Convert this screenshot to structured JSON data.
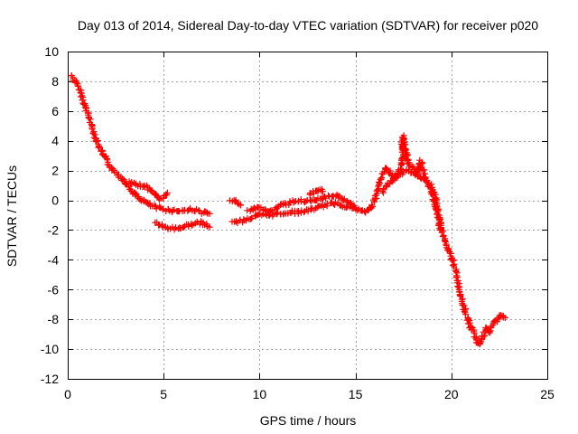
{
  "chart_data": {
    "type": "scatter",
    "title": "Day 013 of 2014, Sidereal Day-to-day VTEC variation (SDTVAR) for receiver p020",
    "xlabel": "GPS time / hours",
    "ylabel": "SDTVAR / TECUs",
    "xlim": [
      0,
      25
    ],
    "ylim": [
      -12,
      10
    ],
    "xticks": [
      0,
      5,
      10,
      15,
      20,
      25
    ],
    "yticks": [
      -12,
      -10,
      -8,
      -6,
      -4,
      -2,
      0,
      2,
      4,
      6,
      8,
      10
    ],
    "grid": true,
    "marker": "+",
    "legend": "none",
    "series": [
      {
        "name": "SDTVAR",
        "color": "#ff0000",
        "segments": [
          {
            "name": "main-track",
            "points": [
              [
                0.2,
                8.4
              ],
              [
                0.4,
                8.0
              ],
              [
                0.6,
                7.5
              ],
              [
                0.8,
                6.8
              ],
              [
                1.0,
                6.0
              ],
              [
                1.2,
                5.2
              ],
              [
                1.4,
                4.4
              ],
              [
                1.6,
                3.7
              ],
              [
                1.8,
                3.2
              ],
              [
                2.0,
                2.8
              ],
              [
                2.2,
                2.3
              ],
              [
                2.5,
                1.9
              ],
              [
                2.8,
                1.5
              ],
              [
                3.0,
                1.2
              ],
              [
                3.2,
                0.8
              ],
              [
                3.5,
                0.4
              ],
              [
                3.8,
                0.1
              ],
              [
                4.0,
                -0.1
              ],
              [
                4.3,
                -0.3
              ],
              [
                4.6,
                -0.5
              ],
              [
                5.0,
                -0.6
              ],
              [
                5.5,
                -0.7
              ],
              [
                6.0,
                -0.7
              ],
              [
                6.5,
                -0.6
              ],
              [
                7.0,
                -0.8
              ],
              [
                7.4,
                -0.9
              ]
            ]
          },
          {
            "name": "upper-branch",
            "points": [
              [
                3.2,
                1.2
              ],
              [
                3.6,
                1.0
              ],
              [
                4.0,
                1.0
              ],
              [
                4.3,
                0.7
              ],
              [
                4.6,
                0.4
              ],
              [
                4.8,
                0.1
              ],
              [
                5.0,
                0.2
              ],
              [
                5.2,
                0.5
              ]
            ]
          },
          {
            "name": "lower-branch",
            "points": [
              [
                4.6,
                -1.5
              ],
              [
                5.0,
                -1.8
              ],
              [
                5.5,
                -1.9
              ],
              [
                6.0,
                -1.8
              ],
              [
                6.5,
                -1.6
              ],
              [
                7.0,
                -1.5
              ],
              [
                7.4,
                -1.8
              ]
            ]
          },
          {
            "name": "mid-track",
            "points": [
              [
                8.5,
                0.0
              ],
              [
                8.8,
                -0.1
              ],
              [
                9.0,
                -0.3
              ]
            ]
          },
          {
            "name": "mid-track-2",
            "points": [
              [
                8.6,
                -1.5
              ],
              [
                9.0,
                -1.4
              ],
              [
                9.5,
                -1.2
              ],
              [
                10.0,
                -1.0
              ],
              [
                10.5,
                -1.0
              ],
              [
                11.0,
                -0.9
              ],
              [
                11.5,
                -0.8
              ],
              [
                12.0,
                -0.8
              ],
              [
                12.5,
                -0.7
              ],
              [
                13.0,
                -0.5
              ],
              [
                13.5,
                -0.3
              ],
              [
                14.0,
                -0.2
              ],
              [
                14.5,
                -0.4
              ],
              [
                15.0,
                -0.6
              ],
              [
                15.5,
                -0.8
              ],
              [
                15.8,
                -0.5
              ],
              [
                16.0,
                0.0
              ],
              [
                16.2,
                0.8
              ],
              [
                16.4,
                1.8
              ],
              [
                16.6,
                2.2
              ],
              [
                16.8,
                1.8
              ],
              [
                17.0,
                1.5
              ],
              [
                17.2,
                1.8
              ],
              [
                17.4,
                2.3
              ],
              [
                17.5,
                3.8
              ],
              [
                17.6,
                2.8
              ],
              [
                17.8,
                2.5
              ],
              [
                18.0,
                2.2
              ],
              [
                18.2,
                1.8
              ],
              [
                18.4,
                2.6
              ],
              [
                18.6,
                1.6
              ],
              [
                18.8,
                1.0
              ],
              [
                19.0,
                0.4
              ],
              [
                19.2,
                -0.5
              ],
              [
                19.4,
                -1.5
              ],
              [
                19.6,
                -2.5
              ],
              [
                19.8,
                -3.3
              ],
              [
                20.0,
                -3.8
              ],
              [
                20.2,
                -4.6
              ],
              [
                20.4,
                -5.8
              ],
              [
                20.6,
                -7.0
              ],
              [
                20.8,
                -7.8
              ],
              [
                21.0,
                -8.5
              ],
              [
                21.2,
                -9.0
              ],
              [
                21.4,
                -9.7
              ],
              [
                21.6,
                -9.4
              ],
              [
                21.8,
                -8.6
              ],
              [
                22.0,
                -8.9
              ],
              [
                22.2,
                -8.2
              ],
              [
                22.4,
                -8.0
              ],
              [
                22.6,
                -7.7
              ],
              [
                22.8,
                -7.9
              ]
            ]
          },
          {
            "name": "mid-upper",
            "points": [
              [
                9.4,
                -0.7
              ],
              [
                10.0,
                -0.5
              ],
              [
                10.5,
                -0.8
              ],
              [
                11.0,
                -0.4
              ],
              [
                11.5,
                -0.2
              ],
              [
                12.0,
                0.0
              ],
              [
                12.5,
                -0.1
              ],
              [
                13.0,
                0.0
              ],
              [
                13.5,
                0.2
              ],
              [
                14.0,
                0.3
              ],
              [
                14.5,
                0.0
              ],
              [
                15.0,
                -0.5
              ]
            ]
          },
          {
            "name": "bump",
            "points": [
              [
                12.6,
                0.4
              ],
              [
                12.9,
                0.6
              ],
              [
                13.2,
                0.7
              ],
              [
                13.3,
                0.6
              ]
            ]
          },
          {
            "name": "post-peak",
            "points": [
              [
                16.4,
                0.6
              ],
              [
                16.8,
                1.2
              ],
              [
                17.2,
                1.6
              ],
              [
                17.6,
                2.0
              ],
              [
                18.0,
                1.9
              ],
              [
                18.4,
                1.6
              ],
              [
                18.8,
                1.2
              ],
              [
                19.1,
                0.6
              ],
              [
                19.3,
                -0.6
              ],
              [
                19.4,
                -2.0
              ]
            ]
          },
          {
            "name": "peak-spike",
            "points": [
              [
                17.4,
                3.5
              ],
              [
                17.5,
                4.3
              ],
              [
                17.6,
                3.4
              ],
              [
                17.7,
                3.0
              ]
            ]
          }
        ]
      }
    ]
  }
}
